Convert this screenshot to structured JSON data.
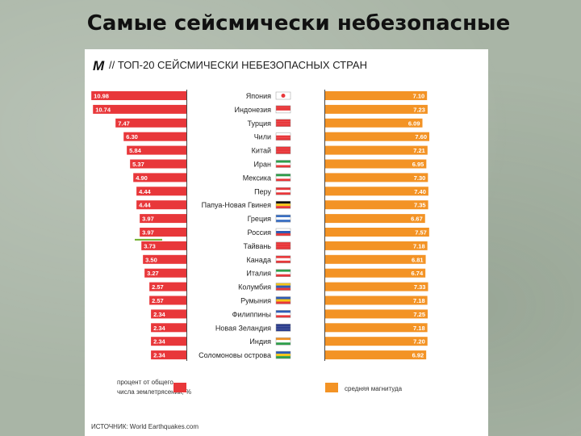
{
  "slide": {
    "title": "Самые сейсмически небезопасные"
  },
  "chart_data": {
    "type": "bar",
    "logo": "M",
    "title": "// ТОП-20 СЕЙСМИЧЕСКИ НЕБЕЗОПАСНЫХ СТРАН",
    "categories": [
      "Япония",
      "Индонезия",
      "Турция",
      "Чили",
      "Китай",
      "Иран",
      "Мексика",
      "Перу",
      "Папуа-Новая Гвинея",
      "Греция",
      "Россия",
      "Тайвань",
      "Канада",
      "Италия",
      "Колумбия",
      "Румыния",
      "Филиппины",
      "Новая Зеландия",
      "Индия",
      "Соломоновы острова"
    ],
    "series": [
      {
        "name": "процент от общего числа землетрясений, %",
        "color": "#e8373a",
        "labels": [
          "10.98",
          "10.74",
          "7.47",
          "6.30",
          "5.84",
          "5.37",
          "4.90",
          "4.44",
          "4.44",
          "3.97",
          "3.97",
          "3.73",
          "3.50",
          "3.27",
          "2.57",
          "2.57",
          "2.34",
          "2.34",
          "2.34",
          "2.34"
        ],
        "values": [
          10.98,
          10.74,
          7.47,
          6.3,
          5.84,
          5.37,
          4.9,
          4.44,
          4.44,
          3.97,
          3.97,
          3.73,
          3.5,
          3.27,
          2.57,
          2.57,
          2.34,
          2.34,
          2.34,
          2.34
        ]
      },
      {
        "name": "средняя магнитуда",
        "color": "#f39325",
        "labels": [
          "7.10",
          "7.23",
          "6.09",
          "7.60",
          "7.21",
          "6.95",
          "7.30",
          "7.40",
          "7.35",
          "6.67",
          "7.57",
          "7.18",
          "6.81",
          "6.74",
          "7.33",
          "7.18",
          "7.25",
          "7.18",
          "7.20",
          "6.92"
        ],
        "values": [
          7.1,
          7.23,
          6.09,
          7.6,
          7.21,
          6.95,
          7.3,
          7.4,
          7.35,
          6.67,
          7.57,
          7.18,
          6.81,
          6.74,
          7.33,
          7.18,
          7.25,
          7.18,
          7.2,
          6.92
        ]
      }
    ],
    "flags": [
      [
        "#ffffff",
        "#ffffff",
        "#ffffff"
      ],
      [
        "#e8373a",
        "#e8373a",
        "#ffffff"
      ],
      [
        "#e8373a",
        "#e8373a",
        "#e8373a"
      ],
      [
        "#ffffff",
        "#e8373a",
        "#e8373a"
      ],
      [
        "#e8373a",
        "#e8373a",
        "#e8373a"
      ],
      [
        "#2e9e4a",
        "#ffffff",
        "#e8373a"
      ],
      [
        "#2e9e4a",
        "#ffffff",
        "#e8373a"
      ],
      [
        "#e8373a",
        "#ffffff",
        "#e8373a"
      ],
      [
        "#111111",
        "#f5c518",
        "#e8373a"
      ],
      [
        "#3a6fc4",
        "#ffffff",
        "#3a6fc4"
      ],
      [
        "#ffffff",
        "#2d5bb5",
        "#e8373a"
      ],
      [
        "#e8373a",
        "#e8373a",
        "#e8373a"
      ],
      [
        "#e8373a",
        "#ffffff",
        "#e8373a"
      ],
      [
        "#2e9e4a",
        "#ffffff",
        "#e8373a"
      ],
      [
        "#f5c518",
        "#2d5bb5",
        "#e8373a"
      ],
      [
        "#2d5bb5",
        "#f5c518",
        "#e8373a"
      ],
      [
        "#2d5bb5",
        "#ffffff",
        "#e8373a"
      ],
      [
        "#2d3f8f",
        "#2d3f8f",
        "#2d3f8f"
      ],
      [
        "#f39325",
        "#ffffff",
        "#2e9e4a"
      ],
      [
        "#2d5bb5",
        "#f5c518",
        "#2e9e4a"
      ]
    ],
    "legend_left": [
      "процент от общего",
      "числа землетрясений, %"
    ],
    "legend_right": "средняя магнитуда",
    "source": "ИСТОЧНИК: World Earthquakes.com"
  }
}
